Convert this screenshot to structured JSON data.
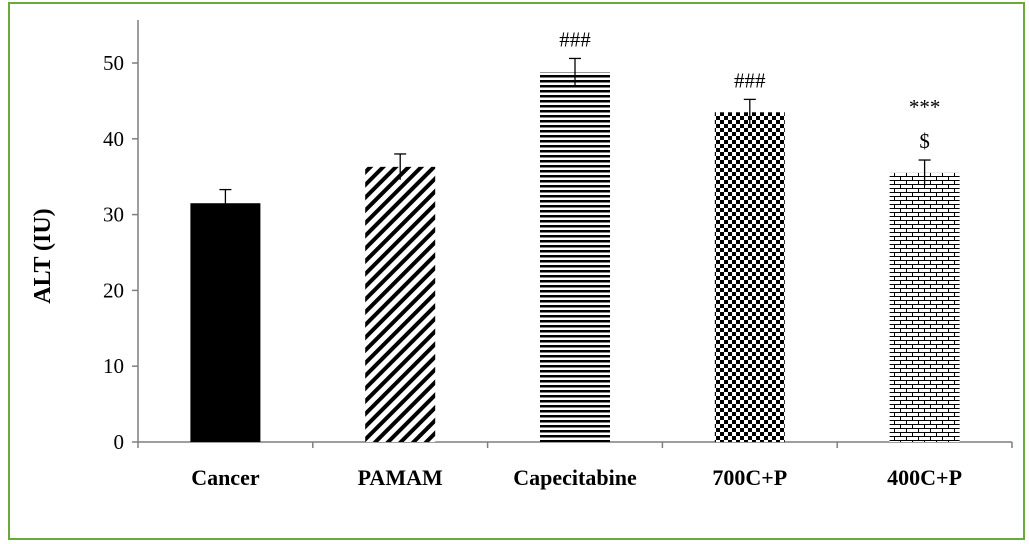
{
  "chart_data": {
    "type": "bar",
    "ylabel": "ALT (IU)",
    "ylim": [
      0,
      50
    ],
    "yticks": [
      "0",
      "10",
      "20",
      "30",
      "40",
      "50"
    ],
    "categories": [
      "Cancer",
      "PAMAM",
      "Capecitabine",
      "700C+P",
      "400C+P"
    ],
    "values": [
      31.5,
      36.3,
      48.8,
      43.5,
      35.5
    ],
    "errors": [
      1.8,
      1.7,
      1.8,
      1.7,
      1.7
    ],
    "annotations": [
      [],
      [],
      [
        "###"
      ],
      [
        "###"
      ],
      [
        "***",
        "$"
      ]
    ],
    "patterns": [
      "solid",
      "diagonal",
      "horizontal",
      "checker",
      "brick"
    ],
    "grid": false,
    "legend": "none"
  },
  "colors": {
    "border": "#6aaa3a",
    "axis": "#7f7f7f",
    "bar": "#000000"
  }
}
